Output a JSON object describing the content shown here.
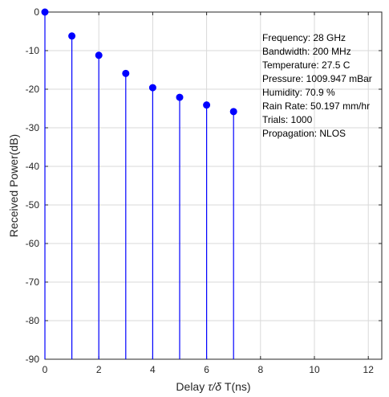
{
  "chart_data": {
    "type": "stem",
    "xlabel": "Delay",
    "xlabel_math": "τ/δ",
    "xlabel_suffix": " T(ns)",
    "ylabel": "Received Power(dB)",
    "xlim": [
      0,
      12.5
    ],
    "ylim": [
      -90,
      0
    ],
    "xticks": [
      0,
      2,
      4,
      6,
      8,
      10,
      12
    ],
    "yticks": [
      0,
      -10,
      -20,
      -30,
      -40,
      -50,
      -60,
      -70,
      -80,
      -90
    ],
    "grid": true,
    "series": [
      {
        "x": [
          0,
          1,
          2,
          3,
          4,
          5,
          6,
          7
        ],
        "values": [
          0,
          -6.2,
          -11.2,
          -15.9,
          -19.6,
          -22.1,
          -24.1,
          -25.8
        ],
        "color": "#0000ff"
      }
    ],
    "annotations": [
      "Frequency: 28 GHz",
      "Bandwidth: 200 MHz",
      "Temperature: 27.5 C",
      "Pressure: 1009.947 mBar",
      "Humidity: 70.9 %",
      "Rain Rate: 50.197 mm/hr",
      "Trials: 1000",
      "Propagation: NLOS"
    ]
  }
}
